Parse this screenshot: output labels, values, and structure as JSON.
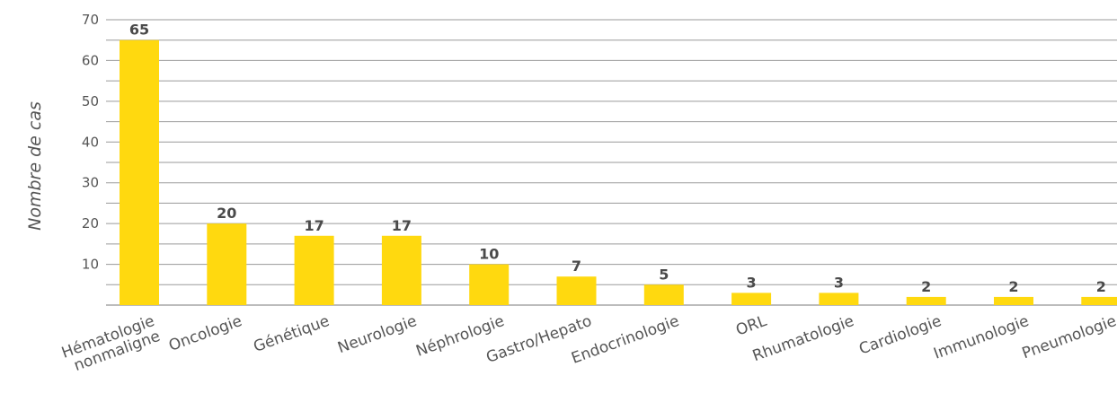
{
  "chart_data": {
    "type": "bar",
    "title": "",
    "xlabel": "",
    "ylabel": "Nombre de cas",
    "categories": [
      "Hématologie nonmaligne",
      "Oncologie",
      "Génétique",
      "Neurologie",
      "Néphrologie",
      "Gastro/Hepato",
      "Endocrinologie",
      "ORL",
      "Rhumatologie",
      "Cardiologie",
      "Immunologie",
      "Pneumologie"
    ],
    "category_lines": [
      [
        "Hématologie",
        "nonmaligne"
      ],
      [
        "Oncologie"
      ],
      [
        "Génétique"
      ],
      [
        "Neurologie"
      ],
      [
        "Néphrologie"
      ],
      [
        "Gastro/Hepato"
      ],
      [
        "Endocrinologie"
      ],
      [
        "ORL"
      ],
      [
        "Rhumatologie"
      ],
      [
        "Cardiologie"
      ],
      [
        "Immunologie"
      ],
      [
        "Pneumologie"
      ]
    ],
    "values": [
      65,
      20,
      17,
      17,
      10,
      7,
      5,
      3,
      3,
      2,
      2,
      2
    ],
    "data_labels": [
      "65",
      "20",
      "17",
      "17",
      "10",
      "7",
      "5",
      "3",
      "3",
      "2",
      "2",
      "2"
    ],
    "yticks": [
      10,
      20,
      30,
      40,
      50,
      60,
      70
    ],
    "ytick_labels": [
      "10",
      "20",
      "30",
      "40",
      "50",
      "60",
      "70"
    ],
    "ylim": [
      0,
      70
    ],
    "grid": true,
    "legend": "none",
    "colors": {
      "bar": "#ffd90f",
      "grid": "#9a9a9a",
      "text": "#555555",
      "data_label": "#4a4a4a"
    }
  }
}
